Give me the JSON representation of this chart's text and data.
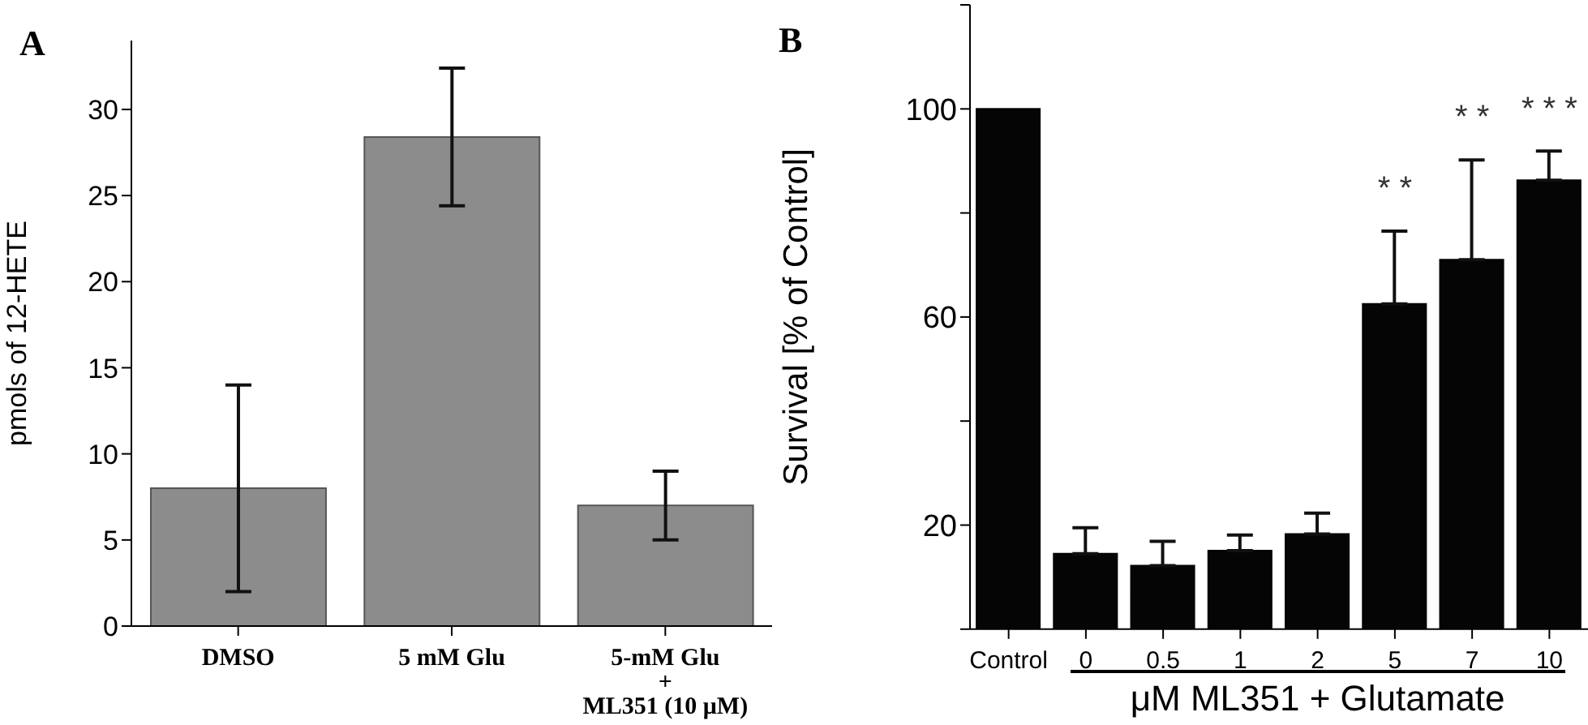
{
  "chart_data": [
    {
      "type": "bar",
      "title": "A",
      "ylabel": "pmols of 12-HETE",
      "categories": [
        "DMSO",
        "5 mM Glu",
        "5-mM Glu\n+\nML351 (10 μM)"
      ],
      "values": [
        8,
        28.4,
        7
      ],
      "errors": [
        [
          2,
          14
        ],
        [
          24.4,
          32.4
        ],
        [
          5,
          9
        ]
      ],
      "color": "#8c8c8c",
      "ylim": [
        0,
        34
      ],
      "yticks": [
        0,
        5,
        10,
        15,
        20,
        25,
        30
      ]
    },
    {
      "type": "bar",
      "title": "B",
      "ylabel": "Survival [% of Control]",
      "xlabel": "μM ML351 + Glutamate",
      "categories": [
        "Control",
        "0",
        "0.5",
        "1",
        "2",
        "5",
        "7",
        "10"
      ],
      "values": [
        100,
        14.5,
        12.2,
        15.1,
        18.3,
        62.5,
        71,
        86.3
      ],
      "errors": [
        null,
        [
          14.5,
          19.5
        ],
        [
          12.2,
          16.9
        ],
        [
          15.1,
          18.1
        ],
        [
          18.3,
          22.3
        ],
        [
          62.5,
          76.5
        ],
        [
          71,
          90.2
        ],
        [
          86.3,
          91.9
        ]
      ],
      "color": "#050505",
      "ylim": [
        0,
        120
      ],
      "yticks": [
        {
          "value": 0,
          "label": null
        },
        20,
        {
          "value": 40,
          "label": null
        },
        60,
        {
          "value": 80,
          "label": null
        },
        100,
        {
          "value": 120,
          "label": null
        }
      ],
      "annotations": [
        "* *",
        "* *",
        "* * *"
      ]
    }
  ]
}
